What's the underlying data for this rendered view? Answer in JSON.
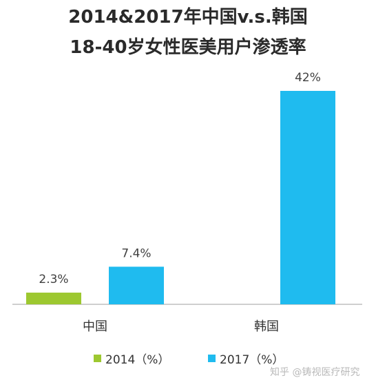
{
  "title_line1": "2014&2017年中国v.s.韩国",
  "title_line2": "18-40岁女性医美用户渗透率",
  "watermark": "知乎 @铸视医疗研究",
  "chart_data": {
    "type": "bar",
    "categories": [
      "中国",
      "韩国"
    ],
    "series": [
      {
        "name": "2014（%）",
        "values": [
          2.3,
          null
        ],
        "labels": [
          "2.3%",
          ""
        ],
        "color": "#9dc830"
      },
      {
        "name": "2017（%）",
        "values": [
          7.4,
          42
        ],
        "labels": [
          "7.4%",
          "42%"
        ],
        "color": "#1fbbef"
      }
    ],
    "ylim": [
      0,
      42
    ],
    "grid": false,
    "legend": "bottom"
  }
}
